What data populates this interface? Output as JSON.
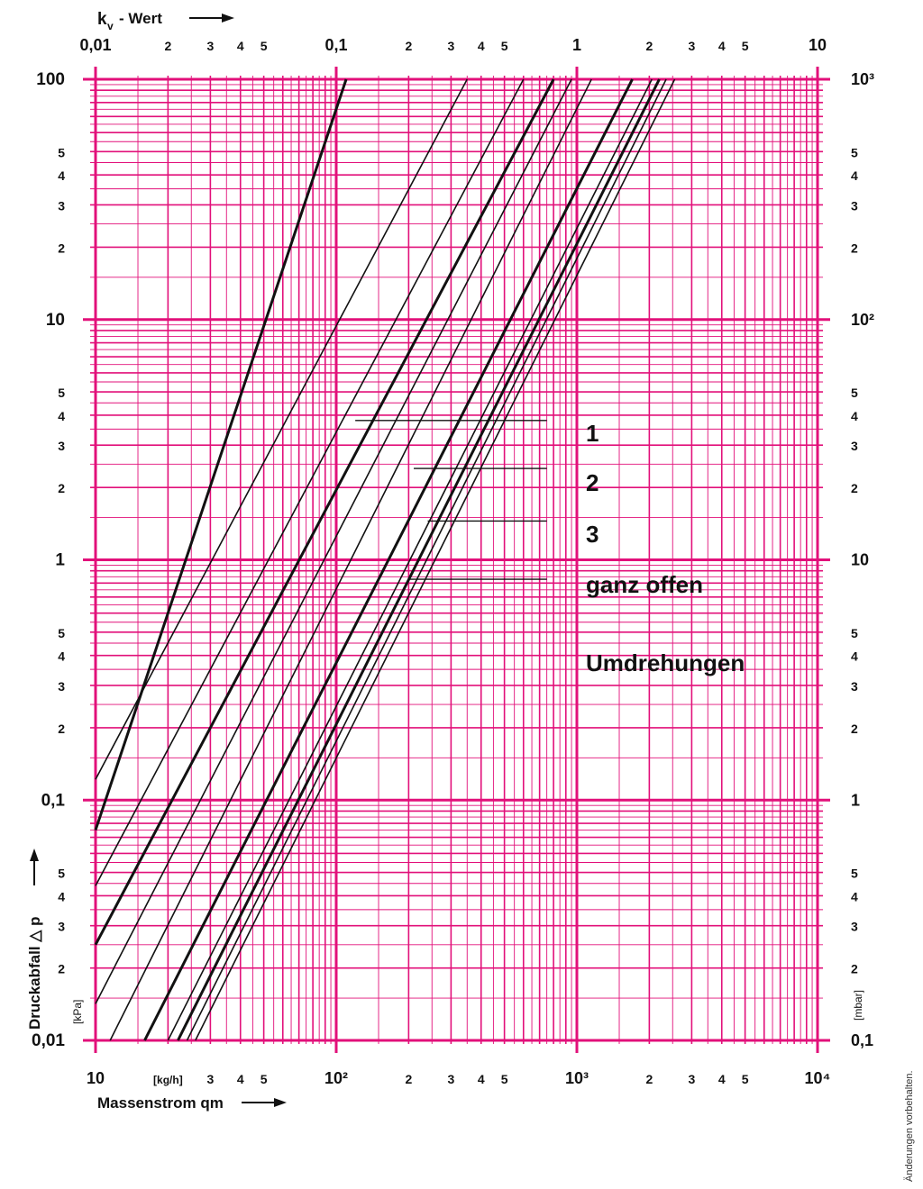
{
  "chart_data": {
    "type": "line",
    "scale": {
      "x": "log",
      "y": "log"
    },
    "grid": true,
    "colors": {
      "grid": "#e2107a",
      "lines": "#111111"
    },
    "xlim": [
      10,
      10000
    ],
    "ylim": [
      0.01,
      100
    ],
    "bottom_axis": {
      "label": "Massenstrom qm",
      "unit": "[kg/h]",
      "ticks": [
        {
          "v": 10,
          "t": "10",
          "big": true
        },
        {
          "v": 20,
          "t": "[kg/h]",
          "big": false
        },
        {
          "v": 30,
          "t": "3",
          "big": false
        },
        {
          "v": 40,
          "t": "4",
          "big": false
        },
        {
          "v": 50,
          "t": "5",
          "big": false
        },
        {
          "v": 100,
          "t": "10²",
          "big": true
        },
        {
          "v": 200,
          "t": "2",
          "big": false
        },
        {
          "v": 300,
          "t": "3",
          "big": false
        },
        {
          "v": 400,
          "t": "4",
          "big": false
        },
        {
          "v": 500,
          "t": "5",
          "big": false
        },
        {
          "v": 1000,
          "t": "10³",
          "big": true
        },
        {
          "v": 2000,
          "t": "2",
          "big": false
        },
        {
          "v": 3000,
          "t": "3",
          "big": false
        },
        {
          "v": 4000,
          "t": "4",
          "big": false
        },
        {
          "v": 5000,
          "t": "5",
          "big": false
        },
        {
          "v": 10000,
          "t": "10⁴",
          "big": true
        }
      ]
    },
    "top_axis": {
      "label": "kv - Wert",
      "ticks": [
        {
          "v": 0.01,
          "t": "0,01",
          "big": true
        },
        {
          "v": 0.02,
          "t": "2",
          "big": false
        },
        {
          "v": 0.03,
          "t": "3",
          "big": false
        },
        {
          "v": 0.04,
          "t": "4",
          "big": false
        },
        {
          "v": 0.05,
          "t": "5",
          "big": false
        },
        {
          "v": 0.1,
          "t": "0,1",
          "big": true
        },
        {
          "v": 0.2,
          "t": "2",
          "big": false
        },
        {
          "v": 0.3,
          "t": "3",
          "big": false
        },
        {
          "v": 0.4,
          "t": "4",
          "big": false
        },
        {
          "v": 0.5,
          "t": "5",
          "big": false
        },
        {
          "v": 1,
          "t": "1",
          "big": true
        },
        {
          "v": 2,
          "t": "2",
          "big": false
        },
        {
          "v": 3,
          "t": "3",
          "big": false
        },
        {
          "v": 4,
          "t": "4",
          "big": false
        },
        {
          "v": 5,
          "t": "5",
          "big": false
        },
        {
          "v": 10,
          "t": "10",
          "big": true
        }
      ]
    },
    "left_axis": {
      "label": "Druckabfall △ p",
      "unit": "[kPa]",
      "ticks": [
        {
          "v": 100,
          "t": "100",
          "big": true
        },
        {
          "v": 50,
          "t": "5",
          "big": false
        },
        {
          "v": 40,
          "t": "4",
          "big": false
        },
        {
          "v": 30,
          "t": "3",
          "big": false
        },
        {
          "v": 20,
          "t": "2",
          "big": false
        },
        {
          "v": 10,
          "t": "10",
          "big": true
        },
        {
          "v": 5,
          "t": "5",
          "big": false
        },
        {
          "v": 4,
          "t": "4",
          "big": false
        },
        {
          "v": 3,
          "t": "3",
          "big": false
        },
        {
          "v": 2,
          "t": "2",
          "big": false
        },
        {
          "v": 1,
          "t": "1",
          "big": true
        },
        {
          "v": 0.5,
          "t": "5",
          "big": false
        },
        {
          "v": 0.4,
          "t": "4",
          "big": false
        },
        {
          "v": 0.3,
          "t": "3",
          "big": false
        },
        {
          "v": 0.2,
          "t": "2",
          "big": false
        },
        {
          "v": 0.1,
          "t": "0,1",
          "big": true
        },
        {
          "v": 0.05,
          "t": "5",
          "big": false
        },
        {
          "v": 0.04,
          "t": "4",
          "big": false
        },
        {
          "v": 0.03,
          "t": "3",
          "big": false
        },
        {
          "v": 0.02,
          "t": "2",
          "big": false
        },
        {
          "v": 0.01,
          "t": "0,01",
          "big": true
        }
      ]
    },
    "right_axis": {
      "unit": "[mbar]",
      "ticks": [
        {
          "v": 100,
          "t": "10³",
          "big": true
        },
        {
          "v": 50,
          "t": "5",
          "big": false
        },
        {
          "v": 40,
          "t": "4",
          "big": false
        },
        {
          "v": 30,
          "t": "3",
          "big": false
        },
        {
          "v": 20,
          "t": "2",
          "big": false
        },
        {
          "v": 10,
          "t": "10²",
          "big": true
        },
        {
          "v": 5,
          "t": "5",
          "big": false
        },
        {
          "v": 4,
          "t": "4",
          "big": false
        },
        {
          "v": 3,
          "t": "3",
          "big": false
        },
        {
          "v": 2,
          "t": "2",
          "big": false
        },
        {
          "v": 1,
          "t": "10",
          "big": true
        },
        {
          "v": 0.5,
          "t": "5",
          "big": false
        },
        {
          "v": 0.4,
          "t": "4",
          "big": false
        },
        {
          "v": 0.3,
          "t": "3",
          "big": false
        },
        {
          "v": 0.2,
          "t": "2",
          "big": false
        },
        {
          "v": 0.1,
          "t": "1",
          "big": true
        },
        {
          "v": 0.05,
          "t": "5",
          "big": false
        },
        {
          "v": 0.04,
          "t": "4",
          "big": false
        },
        {
          "v": 0.03,
          "t": "3",
          "big": false
        },
        {
          "v": 0.02,
          "t": "2",
          "big": false
        },
        {
          "v": 0.01,
          "t": "0,1",
          "big": true
        }
      ]
    },
    "series": [
      {
        "points": [
          [
            10,
            0.075
          ],
          [
            110,
            100
          ]
        ],
        "weight": "bold"
      },
      {
        "points": [
          [
            10,
            0.122
          ],
          [
            350,
            100
          ]
        ],
        "weight": "normal"
      },
      {
        "points": [
          [
            10,
            0.044
          ],
          [
            600,
            100
          ]
        ],
        "weight": "normal"
      },
      {
        "points": [
          [
            10,
            0.025
          ],
          [
            800,
            100
          ]
        ],
        "weight": "bold"
      },
      {
        "points": [
          [
            10,
            0.0142
          ],
          [
            950,
            100
          ]
        ],
        "weight": "normal"
      },
      {
        "points": [
          [
            11.5,
            0.01
          ],
          [
            1150,
            100
          ]
        ],
        "weight": "normal"
      },
      {
        "points": [
          [
            16,
            0.01
          ],
          [
            1700,
            100
          ]
        ],
        "weight": "bold"
      },
      {
        "points": [
          [
            20,
            0.01
          ],
          [
            2050,
            100
          ]
        ],
        "weight": "normal"
      },
      {
        "points": [
          [
            22,
            0.01
          ],
          [
            2200,
            100
          ]
        ],
        "weight": "bold"
      },
      {
        "points": [
          [
            24,
            0.01
          ],
          [
            2350,
            100
          ]
        ],
        "weight": "normal"
      },
      {
        "points": [
          [
            26,
            0.01
          ],
          [
            2550,
            100
          ]
        ],
        "weight": "normal"
      }
    ],
    "annotations": [
      {
        "text": "1",
        "x_from": 120,
        "x_to": 750,
        "y": 3.8
      },
      {
        "text": "2",
        "x_from": 210,
        "x_to": 750,
        "y": 2.4
      },
      {
        "text": "3",
        "x_from": 240,
        "x_to": 750,
        "y": 1.45
      },
      {
        "text": "ganz offen",
        "x_from": 200,
        "x_to": 750,
        "y": 0.83
      }
    ],
    "legend_title": "Umdrehungen"
  },
  "footnote": "Änderungen vorbehalten."
}
